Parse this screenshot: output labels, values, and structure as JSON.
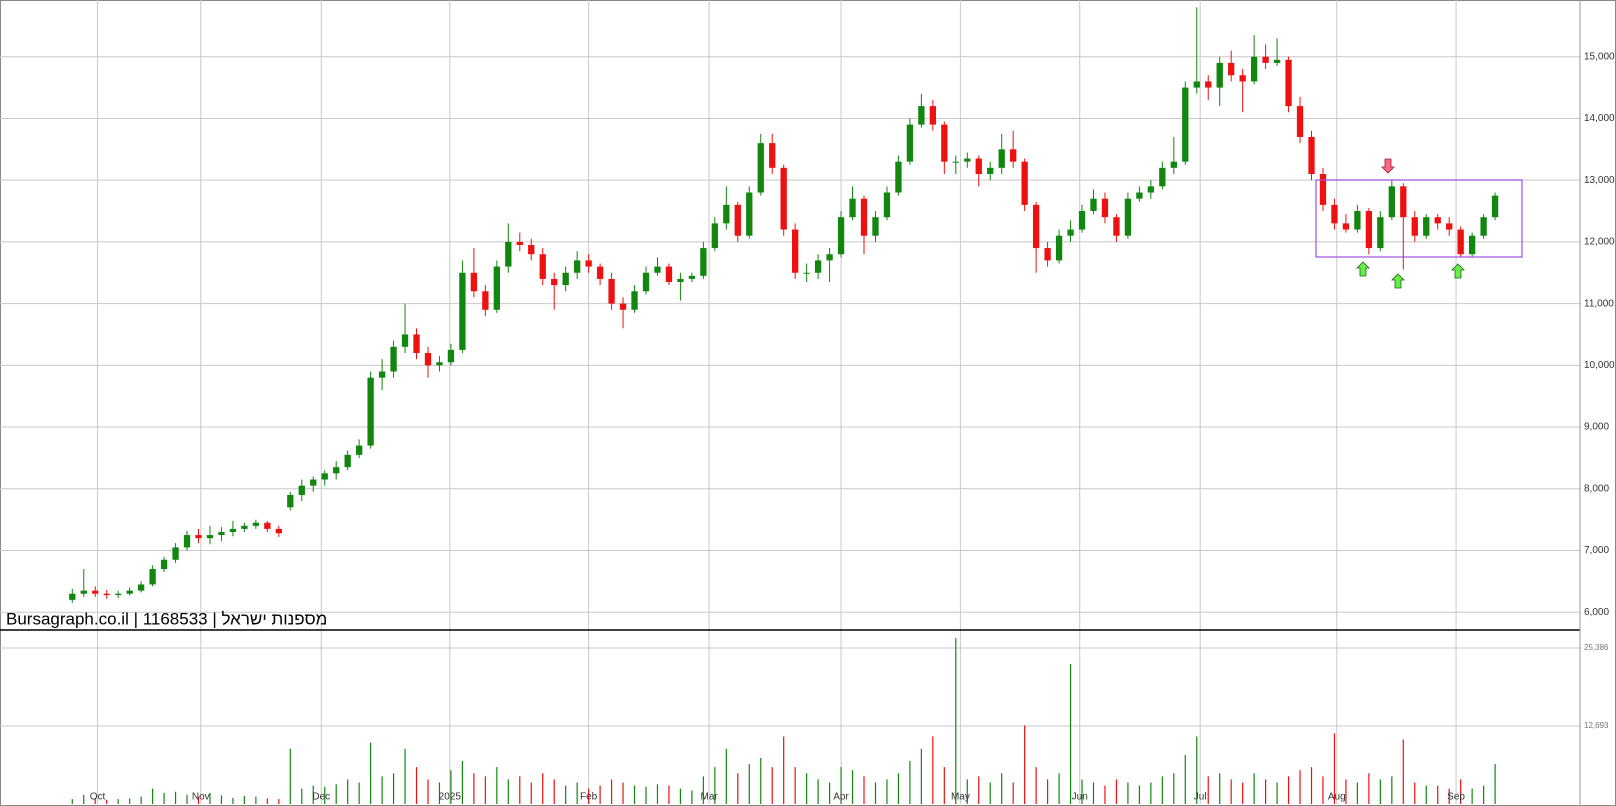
{
  "chart_data": [
    {
      "type": "candlestick",
      "title": "Bursagraph.co.il | 1168533 | מספנות ישראל",
      "up_color": "#11870f",
      "down_color": "#ee1111",
      "xlim": [
        -6.3,
        131.4
      ],
      "xticks": [
        {
          "value": 2.2,
          "label": "Oct"
        },
        {
          "value": 11.2,
          "label": "Nov"
        },
        {
          "value": 21.7,
          "label": "Dec"
        },
        {
          "value": 32.9,
          "label": "2025"
        },
        {
          "value": 45,
          "label": "Feb"
        },
        {
          "value": 55.5,
          "label": "Mar"
        },
        {
          "value": 67,
          "label": "Apr"
        },
        {
          "value": 77.4,
          "label": "May"
        },
        {
          "value": 87.8,
          "label": "Jun"
        },
        {
          "value": 98.3,
          "label": "Jul"
        },
        {
          "value": 110.2,
          "label": "Aug"
        },
        {
          "value": 120.6,
          "label": "Sep"
        }
      ],
      "ylim": [
        5712,
        15919
      ],
      "yticks": [
        {
          "value": 6000,
          "label": "6,000"
        },
        {
          "value": 7000,
          "label": "7,000"
        },
        {
          "value": 8000,
          "label": "8,000"
        },
        {
          "value": 9000,
          "label": "9,000"
        },
        {
          "value": 10000,
          "label": "10,000"
        },
        {
          "value": 11000,
          "label": "11,000"
        },
        {
          "value": 12000,
          "label": "12,000"
        },
        {
          "value": 13000,
          "label": "13,000"
        },
        {
          "value": 14000,
          "label": "14,000"
        },
        {
          "value": 15000,
          "label": "15,000"
        }
      ],
      "grid": true,
      "open": [
        6200,
        6300,
        6350,
        6300,
        6280,
        6300,
        6350,
        6450,
        6700,
        6850,
        7050,
        7250,
        7200,
        7250,
        7300,
        7350,
        7400,
        7450,
        7350,
        7700,
        7900,
        8050,
        8150,
        8250,
        8350,
        8550,
        8700,
        9800,
        9900,
        10300,
        10500,
        10200,
        10000,
        10050,
        10250,
        11500,
        11200,
        10900,
        11600,
        12000,
        11950,
        11800,
        11400,
        11300,
        11500,
        11700,
        11600,
        11400,
        11000,
        10900,
        11200,
        11500,
        11600,
        11350,
        11400,
        11450,
        11900,
        12300,
        12600,
        12100,
        12800,
        13600,
        13200,
        12200,
        11500,
        11500,
        11700,
        11800,
        12400,
        12700,
        12100,
        12400,
        12800,
        13300,
        13900,
        14200,
        13900,
        13300,
        13300,
        13350,
        13100,
        13200,
        13500,
        13300,
        12600,
        11900,
        11700,
        12100,
        12200,
        12500,
        12700,
        12400,
        12100,
        12700,
        12800,
        12900,
        13200,
        13300,
        14500,
        14600,
        14500,
        14900,
        14700,
        14600,
        15000,
        14900,
        14950,
        14200,
        13700,
        13100,
        12600,
        12300,
        12200,
        12500,
        11900,
        12400,
        12900,
        12400,
        12100,
        12400,
        12300,
        12200,
        11800,
        12100,
        12400
      ],
      "high": [
        6380,
        6700,
        6420,
        6360,
        6350,
        6400,
        6500,
        6760,
        6900,
        7120,
        7320,
        7350,
        7400,
        7380,
        7480,
        7450,
        7500,
        7480,
        7400,
        7950,
        8150,
        8200,
        8300,
        8450,
        8620,
        8800,
        9900,
        10100,
        10400,
        11000,
        10600,
        10300,
        10150,
        10350,
        11700,
        11900,
        11300,
        11700,
        12300,
        12150,
        12050,
        11900,
        11500,
        11600,
        11850,
        11800,
        11650,
        11500,
        11100,
        11300,
        11600,
        11750,
        11650,
        11500,
        11500,
        12000,
        12400,
        12900,
        12650,
        12900,
        13750,
        13750,
        13250,
        12300,
        11650,
        11800,
        11900,
        12500,
        12900,
        12750,
        12500,
        12900,
        13400,
        14000,
        14400,
        14300,
        13950,
        13400,
        13450,
        13400,
        13300,
        13750,
        13800,
        13350,
        12650,
        12000,
        12200,
        12350,
        12600,
        12850,
        12800,
        12450,
        12800,
        12900,
        13000,
        13300,
        13700,
        14600,
        15800,
        14700,
        15000,
        15100,
        14800,
        15350,
        15200,
        15300,
        15000,
        14350,
        13800,
        13200,
        12700,
        12450,
        12600,
        12550,
        12500,
        13000,
        12950,
        12500,
        12450,
        12450,
        12400,
        12250,
        12150,
        12450,
        12800
      ],
      "low": [
        6150,
        6250,
        6250,
        6220,
        6230,
        6270,
        6320,
        6420,
        6650,
        6800,
        7000,
        7120,
        7100,
        7150,
        7230,
        7300,
        7350,
        7300,
        7220,
        7650,
        7800,
        7950,
        8050,
        8150,
        8300,
        8500,
        8650,
        9600,
        9800,
        10200,
        10100,
        9800,
        9900,
        10000,
        10200,
        11100,
        10800,
        10850,
        11500,
        11850,
        11700,
        11300,
        10900,
        11200,
        11400,
        11500,
        11300,
        10900,
        10600,
        10850,
        11150,
        11450,
        11300,
        11050,
        11350,
        11400,
        11850,
        12200,
        12000,
        12050,
        12750,
        13100,
        12100,
        11400,
        11350,
        11400,
        11350,
        11750,
        12350,
        11800,
        12000,
        12350,
        12750,
        13250,
        13850,
        13800,
        13100,
        13100,
        13200,
        12900,
        13000,
        13100,
        13200,
        12500,
        11500,
        11600,
        11650,
        12000,
        12150,
        12450,
        12300,
        12000,
        12050,
        12650,
        12700,
        12850,
        13100,
        13250,
        14400,
        14300,
        14200,
        14600,
        14100,
        14550,
        14800,
        14850,
        14100,
        13600,
        13000,
        12500,
        12200,
        12150,
        12150,
        11800,
        11850,
        12350,
        11550,
        12000,
        12050,
        12200,
        12100,
        11750,
        11750,
        12050,
        12350
      ],
      "close": [
        6300,
        6350,
        6300,
        6280,
        6300,
        6350,
        6450,
        6700,
        6850,
        7050,
        7250,
        7200,
        7250,
        7300,
        7350,
        7400,
        7450,
        7350,
        7280,
        7900,
        8050,
        8150,
        8250,
        8350,
        8550,
        8700,
        9800,
        9900,
        10300,
        10500,
        10200,
        10000,
        10050,
        10250,
        11500,
        11200,
        10900,
        11600,
        12000,
        11950,
        11800,
        11400,
        11300,
        11500,
        11700,
        11600,
        11400,
        11000,
        10900,
        11200,
        11500,
        11600,
        11350,
        11400,
        11450,
        11900,
        12300,
        12600,
        12100,
        12800,
        13600,
        13200,
        12200,
        11500,
        11500,
        11700,
        11800,
        12400,
        12700,
        12100,
        12400,
        12800,
        13300,
        13900,
        14200,
        13900,
        13300,
        13300,
        13350,
        13100,
        13200,
        13500,
        13300,
        12600,
        11900,
        11700,
        12100,
        12200,
        12500,
        12700,
        12400,
        12100,
        12700,
        12800,
        12900,
        13200,
        13300,
        14500,
        14600,
        14500,
        14900,
        14700,
        14600,
        15000,
        14900,
        14950,
        14200,
        13700,
        13100,
        12600,
        12300,
        12200,
        12500,
        11900,
        12400,
        12900,
        12400,
        12100,
        12400,
        12300,
        12200,
        11800,
        12100,
        12400,
        12750
      ]
    },
    {
      "type": "bar",
      "values": [
        800,
        1500,
        900,
        700,
        800,
        900,
        1200,
        2500,
        1800,
        2000,
        1500,
        1200,
        1800,
        1400,
        1000,
        1300,
        1200,
        900,
        800,
        9000,
        2500,
        3000,
        2800,
        3200,
        4000,
        3500,
        10000,
        4500,
        5000,
        9000,
        6000,
        4000,
        3500,
        5500,
        7000,
        5000,
        4500,
        6000,
        4000,
        4500,
        3500,
        5000,
        4000,
        3000,
        3500,
        2500,
        3000,
        4000,
        3500,
        3000,
        2800,
        3200,
        3000,
        2500,
        2200,
        4500,
        6000,
        9000,
        5000,
        6500,
        7500,
        6000,
        11000,
        6000,
        5000,
        4000,
        3500,
        6000,
        5500,
        4500,
        3500,
        4000,
        5000,
        7000,
        9000,
        11000,
        6000,
        27000,
        4000,
        4500,
        3500,
        5000,
        3500,
        12800,
        6000,
        4000,
        5000,
        22800,
        4000,
        3500,
        3000,
        4000,
        3500,
        3000,
        3500,
        4500,
        5000,
        8000,
        11000,
        4500,
        5000,
        4000,
        3500,
        5000,
        4000,
        3500,
        4500,
        5500,
        6000,
        4500,
        11500,
        4000,
        3500,
        5000,
        4000,
        4500,
        10500,
        3500,
        3000,
        3000,
        2500,
        4000,
        2500,
        3000,
        6500
      ],
      "ylim": [
        0,
        28000
      ],
      "yticks": [
        {
          "value": 12693,
          "label": "12,693"
        },
        {
          "value": 25386,
          "label": "25,386"
        }
      ]
    }
  ]
}
